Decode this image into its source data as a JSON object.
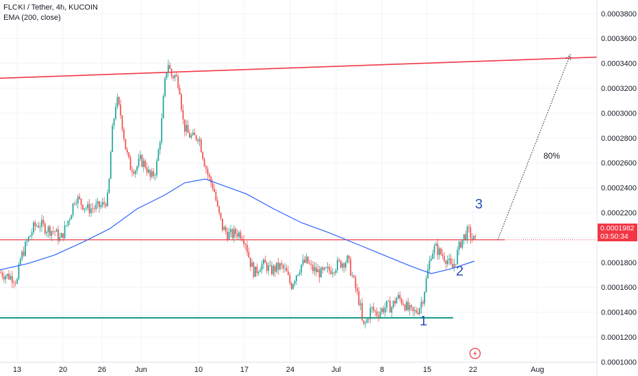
{
  "header": {
    "title": "FLOKI / Tether, 4h, KUCOIN",
    "indicator": "EMA (200, close)"
  },
  "price_tag": {
    "price": "0.0001982",
    "countdown": "03:50:34"
  },
  "annotations": {
    "wave_1": "1",
    "wave_2": "2",
    "wave_3": "3",
    "target_pct": "80%"
  },
  "colors": {
    "up": "#26a69a",
    "down": "#ef5350",
    "ema": "#2962ff",
    "resistance": "#f23645",
    "support": "#089981",
    "wave_labels": "#2a4fb3"
  },
  "chart_data": {
    "type": "candlestick",
    "title": "FLOKI / Tether, 4h, KUCOIN",
    "x_ticks": [
      "13",
      "20",
      "26",
      "Jun",
      "10",
      "17",
      "24",
      "Jul",
      "8",
      "15",
      "22",
      "Aug"
    ],
    "y_ticks": [
      "0.0003800",
      "0.0003600",
      "0.0003400",
      "0.0003200",
      "0.0003000",
      "0.0002800",
      "0.0002600",
      "0.0002400",
      "0.0002200",
      "0.0002000",
      "0.0001800",
      "0.0001600",
      "0.0001400",
      "0.0001200",
      "0.0001000"
    ],
    "ylim": [
      9.75e-05,
      0.0003865
    ],
    "last_price": 0.0001982,
    "price_path": [
      [
        0,
        0.000172
      ],
      [
        7,
        0.00017
      ],
      [
        18,
        0.000168
      ],
      [
        25,
        0.000165
      ],
      [
        30,
        0.000183
      ],
      [
        40,
        0.000197
      ],
      [
        50,
        0.000209
      ],
      [
        58,
        0.000211
      ],
      [
        68,
        0.000207
      ],
      [
        80,
        0.000205
      ],
      [
        88,
        0.000198
      ],
      [
        95,
        0.000207
      ],
      [
        103,
        0.000219
      ],
      [
        110,
        0.000233
      ],
      [
        118,
        0.000228
      ],
      [
        128,
        0.000223
      ],
      [
        140,
        0.000224
      ],
      [
        150,
        0.000226
      ],
      [
        158,
        0.000232
      ],
      [
        163,
        0.00028
      ],
      [
        170,
        0.000312
      ],
      [
        177,
        0.000297
      ],
      [
        184,
        0.00027
      ],
      [
        190,
        0.000257
      ],
      [
        198,
        0.000255
      ],
      [
        205,
        0.000262
      ],
      [
        213,
        0.000258
      ],
      [
        220,
        0.000247
      ],
      [
        228,
        0.000255
      ],
      [
        235,
        0.000285
      ],
      [
        240,
        0.00032
      ],
      [
        245,
        0.000342
      ],
      [
        250,
        0.00033
      ],
      [
        256,
        0.00033
      ],
      [
        262,
        0.000323
      ],
      [
        268,
        0.00029
      ],
      [
        275,
        0.000283
      ],
      [
        282,
        0.00028
      ],
      [
        290,
        0.000282
      ],
      [
        298,
        0.000262
      ],
      [
        305,
        0.000248
      ],
      [
        312,
        0.00024
      ],
      [
        318,
        0.000222
      ],
      [
        325,
        0.000208
      ],
      [
        332,
        0.000203
      ],
      [
        338,
        0.000202
      ],
      [
        345,
        0.000204
      ],
      [
        352,
        0.000203
      ],
      [
        358,
        0.000198
      ],
      [
        365,
        0.000181
      ],
      [
        372,
        0.000171
      ],
      [
        380,
        0.000178
      ],
      [
        388,
        0.000178
      ],
      [
        395,
        0.000173
      ],
      [
        402,
        0.000175
      ],
      [
        410,
        0.000177
      ],
      [
        418,
        0.000172
      ],
      [
        425,
        0.000161
      ],
      [
        432,
        0.00017
      ],
      [
        440,
        0.000178
      ],
      [
        448,
        0.000181
      ],
      [
        455,
        0.000175
      ],
      [
        462,
        0.000173
      ],
      [
        470,
        0.000171
      ],
      [
        478,
        0.000173
      ],
      [
        485,
        0.000175
      ],
      [
        492,
        0.000178
      ],
      [
        500,
        0.00018
      ],
      [
        508,
        0.000182
      ],
      [
        514,
        0.00017
      ],
      [
        520,
        0.000158
      ],
      [
        526,
        0.000146
      ],
      [
        530,
        0.000127
      ],
      [
        535,
        0.000132
      ],
      [
        542,
        0.000143
      ],
      [
        550,
        0.000139
      ],
      [
        558,
        0.000142
      ],
      [
        565,
        0.000145
      ],
      [
        572,
        0.000144
      ],
      [
        580,
        0.000152
      ],
      [
        588,
        0.000149
      ],
      [
        596,
        0.000142
      ],
      [
        604,
        0.000139
      ],
      [
        612,
        0.000143
      ],
      [
        618,
        0.000152
      ],
      [
        624,
        0.00017
      ],
      [
        630,
        0.000188
      ],
      [
        636,
        0.000192
      ],
      [
        642,
        0.000188
      ],
      [
        648,
        0.000185
      ],
      [
        654,
        0.000182
      ],
      [
        660,
        0.000174
      ],
      [
        666,
        0.000183
      ],
      [
        672,
        0.000195
      ],
      [
        678,
        0.000201
      ],
      [
        684,
        0.000205
      ],
      [
        690,
        0.000199
      ],
      [
        695,
        0.000197
      ]
    ],
    "ema_200": [
      [
        0,
        0.000174
      ],
      [
        40,
        0.000179
      ],
      [
        80,
        0.000186
      ],
      [
        120,
        0.000196
      ],
      [
        160,
        0.000207
      ],
      [
        200,
        0.000223
      ],
      [
        240,
        0.000234
      ],
      [
        270,
        0.000244
      ],
      [
        300,
        0.000247
      ],
      [
        330,
        0.000241
      ],
      [
        360,
        0.000235
      ],
      [
        400,
        0.000223
      ],
      [
        440,
        0.000212
      ],
      [
        480,
        0.000204
      ],
      [
        520,
        0.000195
      ],
      [
        560,
        0.000186
      ],
      [
        600,
        0.000177
      ],
      [
        630,
        0.000171
      ],
      [
        660,
        0.000175
      ],
      [
        693,
        0.000181
      ]
    ],
    "drawings": {
      "resistance_line": [
        [
          0,
          0.000328
        ],
        [
          872,
          0.000345
        ]
      ],
      "horizontal_level": 0.0001982,
      "support_line": 0.0001355,
      "target_arrow": [
        [
          727,
          0.000198
        ],
        [
          833,
          0.000347
        ]
      ]
    }
  }
}
